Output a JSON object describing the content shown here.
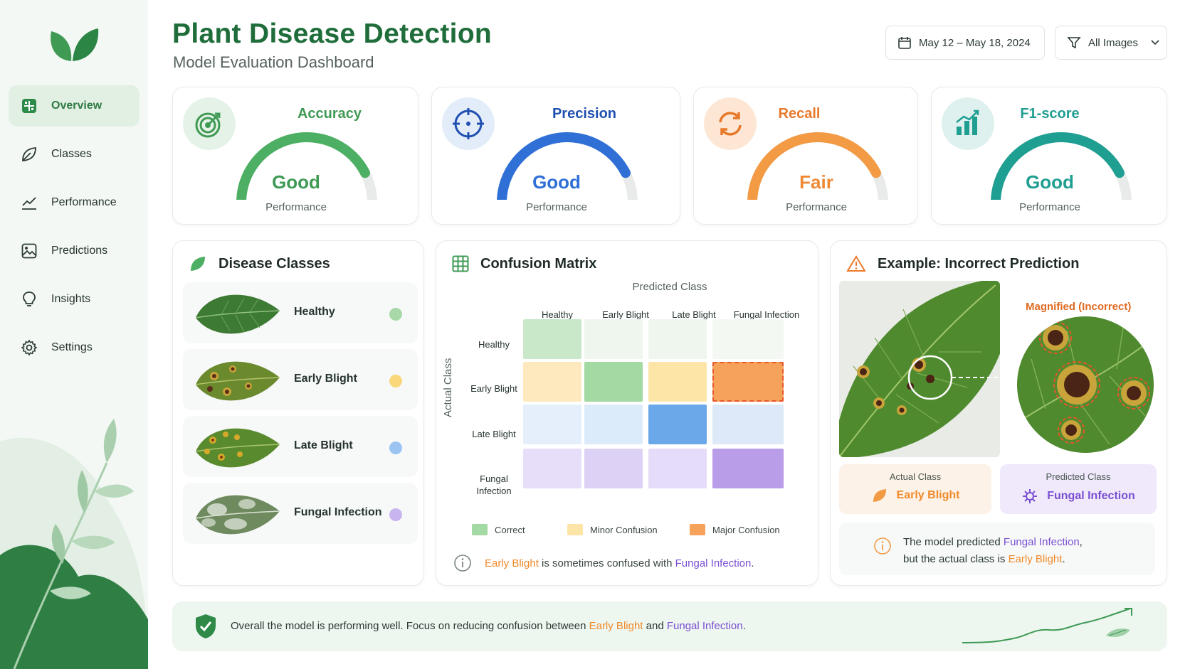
{
  "app": {
    "title": "Plant Disease Detection",
    "subtitle": "Model Evaluation Dashboard"
  },
  "header": {
    "date_range": "May 12 – May 18, 2024",
    "filter": "All Images"
  },
  "sidebar": {
    "items": [
      {
        "label": "Overview",
        "icon": "grid-icon",
        "active": true
      },
      {
        "label": "Classes",
        "icon": "leaf-icon"
      },
      {
        "label": "Performance",
        "icon": "line-chart-icon"
      },
      {
        "label": "Predictions",
        "icon": "image-icon"
      },
      {
        "label": "Insights",
        "icon": "lightbulb-icon"
      },
      {
        "label": "Settings",
        "icon": "gear-icon"
      }
    ]
  },
  "metrics": [
    {
      "name": "Accuracy",
      "rating": "Good",
      "caption": "Performance",
      "color": "#4caf63",
      "level": 0.85,
      "icon": "target-icon"
    },
    {
      "name": "Precision",
      "rating": "Good",
      "caption": "Performance",
      "color": "#2f6fd6",
      "level": 0.85,
      "icon": "crosshair-icon"
    },
    {
      "name": "Recall",
      "rating": "Fair",
      "caption": "Performance",
      "color": "#f39a45",
      "level": 0.85,
      "icon": "refresh-icon"
    },
    {
      "name": "F1-score",
      "rating": "Good",
      "caption": "Performance",
      "color": "#1f9e92",
      "level": 0.85,
      "icon": "bar-chart-icon"
    }
  ],
  "disease_classes": {
    "title": "Disease Classes",
    "items": [
      {
        "label": "Healthy",
        "color": "#a8d8a8"
      },
      {
        "label": "Early Blight",
        "color": "#f9d77a"
      },
      {
        "label": "Late Blight",
        "color": "#9cc4f2"
      },
      {
        "label": "Fungal Infection",
        "color": "#c8b4ee"
      }
    ]
  },
  "confusion_matrix": {
    "title": "Confusion Matrix",
    "predicted_label": "Predicted Class",
    "actual_label": "Actual Class",
    "columns": [
      "Healthy",
      "Early Blight",
      "Late Blight",
      "Fungal Infection"
    ],
    "rows": [
      "Healthy",
      "Early Blight",
      "Late Blight",
      "Fungal\nInfection"
    ],
    "cell_colors": [
      [
        "#c9e8c9",
        "#eef6ee",
        "#eef6ee",
        "#f3f8f3"
      ],
      [
        "#fde9bd",
        "#a3d9a3",
        "#fde5a8",
        "#f6a25a"
      ],
      [
        "#e4effb",
        "#dcebfa",
        "#6aa8ea",
        "#dde9f8"
      ],
      [
        "#e7defa",
        "#ddd1f6",
        "#e5dcf9",
        "#b99de8"
      ]
    ],
    "legend": [
      {
        "label": "Correct",
        "color": "#a3d9a3"
      },
      {
        "label": "Minor Confusion",
        "color": "#fde5a8"
      },
      {
        "label": "Major Confusion",
        "color": "#f6a25a"
      }
    ],
    "note": {
      "a": "Early Blight",
      "mid": " is sometimes confused with ",
      "b": "Fungal Infection",
      "end": "."
    }
  },
  "example": {
    "title": "Example: Incorrect Prediction",
    "magnified_label": "Magnified (Incorrect)",
    "actual_label": "Actual Class",
    "actual_value": "Early Blight",
    "predicted_label": "Predicted Class",
    "predicted_value": "Fungal Infection",
    "note": {
      "p1": "The model predicted ",
      "pred": "Fungal Infection",
      "p2": ",",
      "p3": "but the actual class is ",
      "actual": "Early Blight",
      "p4": "."
    }
  },
  "banner": {
    "p1": "Overall the model is performing well. Focus on reducing confusion between ",
    "a": "Early Blight",
    "mid": " and ",
    "b": "Fungal Infection",
    "end": "."
  }
}
